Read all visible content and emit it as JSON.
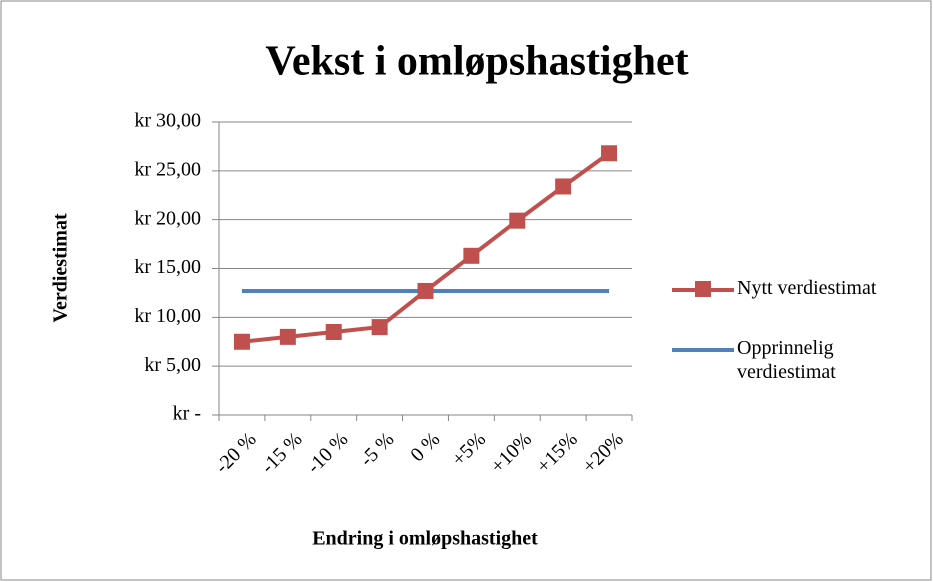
{
  "chart_data": {
    "type": "line",
    "title": "Vekst i omløpshastighet",
    "x_label": "Endring i omløpshastighet",
    "y_label": "Verdiestimat",
    "categories": [
      "-20 %",
      "-15 %",
      "-10 %",
      "-5 %",
      "0 %",
      "+5%",
      "+10%",
      "+15%",
      "+20%"
    ],
    "series": [
      {
        "name": "Nytt verdiestimat",
        "color": "#c0504d",
        "marker": "square",
        "values": [
          7.5,
          8.0,
          8.5,
          9.0,
          12.7,
          16.3,
          19.9,
          23.4,
          26.8
        ]
      },
      {
        "name": "Opprinnelig verdiestimat",
        "color": "#4f81bd",
        "values": [
          12.7,
          12.7,
          12.7,
          12.7,
          12.7,
          12.7,
          12.7,
          12.7,
          12.7
        ]
      }
    ],
    "ylim": [
      0,
      30
    ],
    "yticks": [
      {
        "value": 0,
        "label": "kr -"
      },
      {
        "value": 5,
        "label": "kr 5,00"
      },
      {
        "value": 10,
        "label": "kr 10,00"
      },
      {
        "value": 15,
        "label": "kr 15,00"
      },
      {
        "value": 20,
        "label": "kr 20,00"
      },
      {
        "value": 25,
        "label": "kr 25,00"
      },
      {
        "value": 30,
        "label": "kr 30,00"
      }
    ],
    "grid": true,
    "legend": "right"
  }
}
